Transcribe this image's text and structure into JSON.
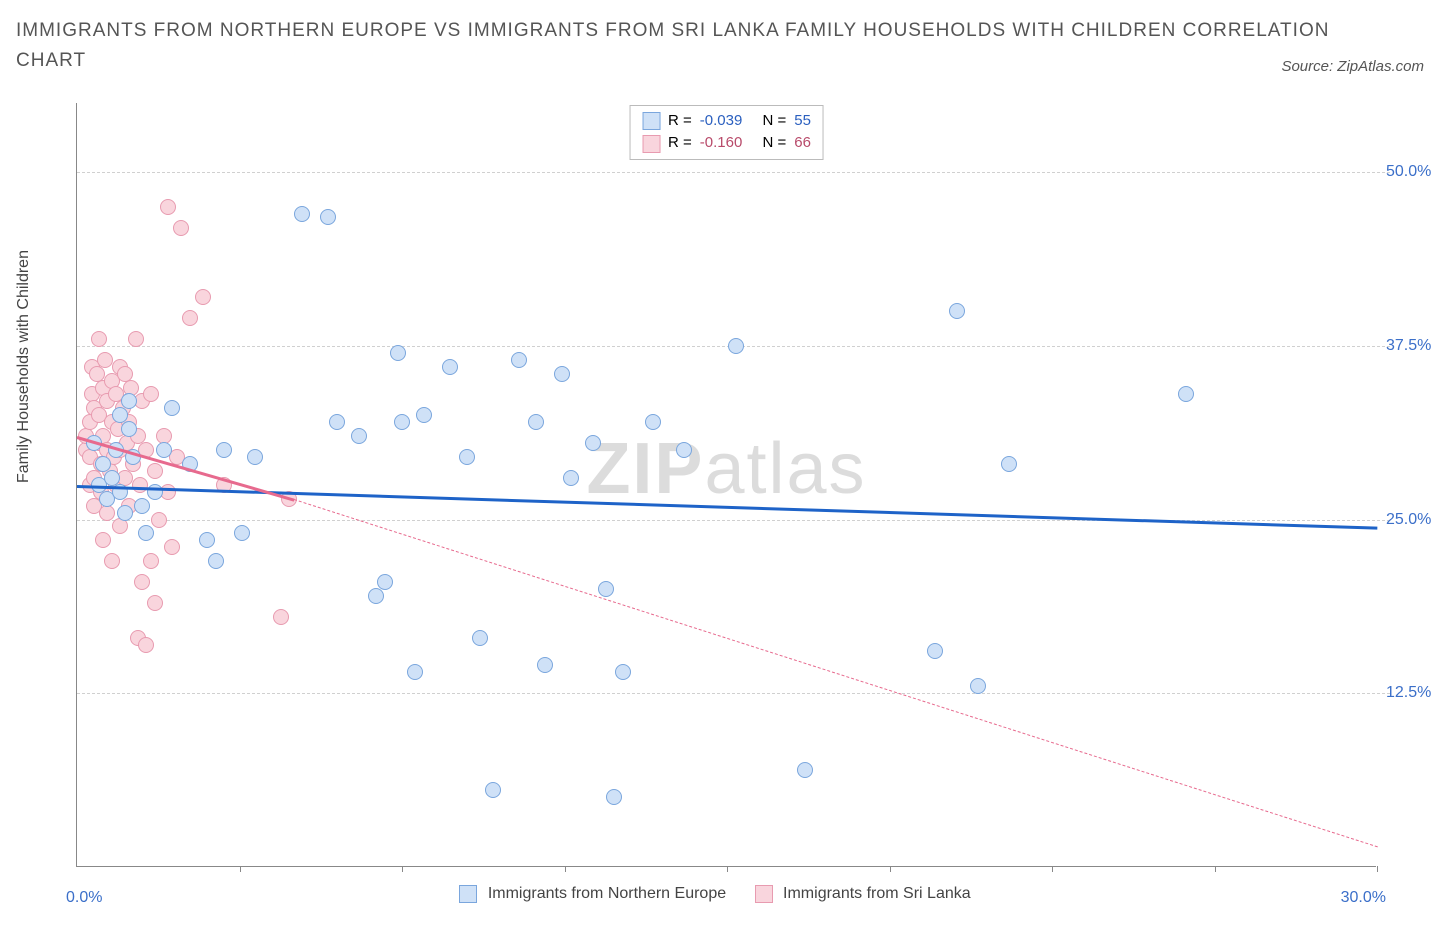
{
  "title": "IMMIGRANTS FROM NORTHERN EUROPE VS IMMIGRANTS FROM SRI LANKA FAMILY HOUSEHOLDS WITH CHILDREN CORRELATION CHART",
  "source_label": "Source: ZipAtlas.com",
  "watermark_bold": "ZIP",
  "watermark_rest": "atlas",
  "y_axis_label": "Family Households with Children",
  "x_origin_label": "0.0%",
  "x_end_label": "30.0%",
  "chart": {
    "type": "scatter",
    "xlim": [
      0,
      30
    ],
    "ylim": [
      0,
      55
    ],
    "y_ticks": [
      12.5,
      25.0,
      37.5,
      50.0
    ],
    "y_tick_labels": [
      "12.5%",
      "25.0%",
      "37.5%",
      "50.0%"
    ],
    "x_ticks": [
      3.75,
      7.5,
      11.25,
      15,
      18.75,
      22.5,
      26.25,
      30
    ],
    "background_color": "#ffffff",
    "grid_color": "#d0d0d0"
  },
  "series": [
    {
      "key": "north",
      "label": "Immigrants from Northern Europe",
      "fill": "#cfe1f7",
      "stroke": "#7aa6dd",
      "trend_color": "#1e63c8",
      "trend_dashed": false,
      "R_label": "R =",
      "R_value": "-0.039",
      "N_label": "N =",
      "N_value": "55",
      "trend": {
        "x1": 0,
        "y1": 27.5,
        "x2": 30,
        "y2": 24.5
      },
      "points": [
        [
          0.4,
          30.5
        ],
        [
          0.5,
          27.5
        ],
        [
          0.6,
          29.0
        ],
        [
          0.7,
          26.5
        ],
        [
          0.8,
          28.0
        ],
        [
          0.9,
          30.0
        ],
        [
          1.0,
          27.0
        ],
        [
          1.0,
          32.5
        ],
        [
          1.1,
          25.5
        ],
        [
          1.2,
          31.5
        ],
        [
          1.2,
          33.5
        ],
        [
          1.3,
          29.5
        ],
        [
          1.5,
          26.0
        ],
        [
          1.6,
          24.0
        ],
        [
          1.8,
          27.0
        ],
        [
          2.0,
          30.0
        ],
        [
          2.2,
          33.0
        ],
        [
          2.6,
          29.0
        ],
        [
          3.0,
          23.5
        ],
        [
          3.2,
          22.0
        ],
        [
          3.4,
          30.0
        ],
        [
          3.8,
          24.0
        ],
        [
          4.1,
          29.5
        ],
        [
          5.2,
          47.0
        ],
        [
          6.0,
          32.0
        ],
        [
          6.5,
          31.0
        ],
        [
          6.9,
          19.5
        ],
        [
          7.1,
          20.5
        ],
        [
          7.4,
          37.0
        ],
        [
          7.5,
          32.0
        ],
        [
          7.8,
          14.0
        ],
        [
          8.0,
          32.5
        ],
        [
          8.6,
          36.0
        ],
        [
          9.0,
          29.5
        ],
        [
          9.3,
          16.5
        ],
        [
          9.6,
          5.5
        ],
        [
          10.2,
          36.5
        ],
        [
          10.6,
          32.0
        ],
        [
          10.8,
          14.5
        ],
        [
          11.2,
          35.5
        ],
        [
          11.4,
          28.0
        ],
        [
          11.9,
          30.5
        ],
        [
          12.2,
          20.0
        ],
        [
          12.4,
          5.0
        ],
        [
          12.6,
          14.0
        ],
        [
          13.3,
          32.0
        ],
        [
          15.2,
          37.5
        ],
        [
          16.8,
          7.0
        ],
        [
          20.3,
          40.0
        ],
        [
          19.8,
          15.5
        ],
        [
          21.5,
          29.0
        ],
        [
          20.8,
          13.0
        ],
        [
          25.6,
          34.0
        ],
        [
          14.0,
          30.0
        ],
        [
          5.8,
          46.8
        ]
      ]
    },
    {
      "key": "sri",
      "label": "Immigrants from Sri Lanka",
      "fill": "#f9d5dd",
      "stroke": "#e89bb0",
      "trend_color": "#e76a8e",
      "trend_dashed_ext": true,
      "R_label": "R =",
      "R_value": "-0.160",
      "N_label": "N =",
      "N_value": "66",
      "trend": {
        "x1": 0,
        "y1": 31.0,
        "x2": 5.0,
        "y2": 26.5
      },
      "trend_ext": {
        "x1": 5.0,
        "y1": 26.5,
        "x2": 30,
        "y2": 1.5
      },
      "points": [
        [
          0.2,
          30.0
        ],
        [
          0.2,
          31.0
        ],
        [
          0.3,
          29.5
        ],
        [
          0.3,
          32.0
        ],
        [
          0.3,
          27.5
        ],
        [
          0.35,
          34.0
        ],
        [
          0.35,
          36.0
        ],
        [
          0.4,
          33.0
        ],
        [
          0.4,
          28.0
        ],
        [
          0.4,
          26.0
        ],
        [
          0.45,
          35.5
        ],
        [
          0.5,
          30.5
        ],
        [
          0.5,
          32.5
        ],
        [
          0.5,
          38.0
        ],
        [
          0.55,
          29.0
        ],
        [
          0.55,
          27.0
        ],
        [
          0.6,
          34.5
        ],
        [
          0.6,
          31.0
        ],
        [
          0.6,
          23.5
        ],
        [
          0.65,
          36.5
        ],
        [
          0.7,
          33.5
        ],
        [
          0.7,
          30.0
        ],
        [
          0.7,
          25.5
        ],
        [
          0.75,
          28.5
        ],
        [
          0.8,
          35.0
        ],
        [
          0.8,
          32.0
        ],
        [
          0.8,
          22.0
        ],
        [
          0.85,
          29.5
        ],
        [
          0.9,
          34.0
        ],
        [
          0.9,
          27.5
        ],
        [
          0.95,
          31.5
        ],
        [
          1.0,
          36.0
        ],
        [
          1.0,
          30.0
        ],
        [
          1.0,
          24.5
        ],
        [
          1.05,
          33.0
        ],
        [
          1.1,
          28.0
        ],
        [
          1.1,
          35.5
        ],
        [
          1.15,
          30.5
        ],
        [
          1.2,
          32.0
        ],
        [
          1.2,
          26.0
        ],
        [
          1.25,
          34.5
        ],
        [
          1.3,
          29.0
        ],
        [
          1.35,
          38.0
        ],
        [
          1.4,
          31.0
        ],
        [
          1.4,
          16.5
        ],
        [
          1.45,
          27.5
        ],
        [
          1.5,
          33.5
        ],
        [
          1.5,
          20.5
        ],
        [
          1.6,
          30.0
        ],
        [
          1.6,
          16.0
        ],
        [
          1.7,
          34.0
        ],
        [
          1.7,
          22.0
        ],
        [
          1.8,
          28.5
        ],
        [
          1.8,
          19.0
        ],
        [
          1.9,
          25.0
        ],
        [
          2.0,
          31.0
        ],
        [
          2.1,
          27.0
        ],
        [
          2.1,
          47.5
        ],
        [
          2.2,
          23.0
        ],
        [
          2.3,
          29.5
        ],
        [
          2.4,
          46.0
        ],
        [
          2.6,
          39.5
        ],
        [
          2.9,
          41.0
        ],
        [
          3.4,
          27.5
        ],
        [
          4.7,
          18.0
        ],
        [
          4.9,
          26.5
        ]
      ]
    }
  ]
}
